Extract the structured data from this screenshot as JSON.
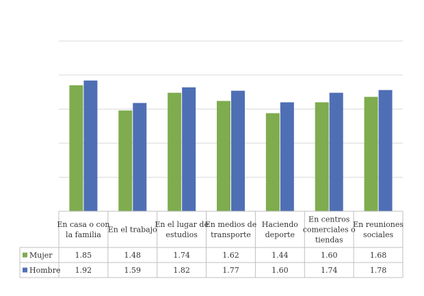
{
  "chart_data": {
    "type": "bar",
    "title": "",
    "xlabel": "",
    "ylabel": "",
    "ylim": [
      0,
      2.5
    ],
    "grid": true,
    "categories": [
      [
        "En casa o con",
        "la familia"
      ],
      [
        "En el trabajo"
      ],
      [
        "En el lugar de",
        "estudios"
      ],
      [
        "En medios de",
        "transporte"
      ],
      [
        "Haciendo",
        "deporte"
      ],
      [
        "En centros",
        "comerciales o",
        "tiendas"
      ],
      [
        "En reuniones",
        "sociales"
      ]
    ],
    "series": [
      {
        "name": "Mujer",
        "color": "#7fac4f",
        "values": [
          1.85,
          1.48,
          1.74,
          1.62,
          1.44,
          1.6,
          1.68
        ],
        "labels": [
          "1.85",
          "1.48",
          "1.74",
          "1.62",
          "1.44",
          "1.60",
          "1.68"
        ]
      },
      {
        "name": "Hombre",
        "color": "#4f6fb5",
        "values": [
          1.92,
          1.59,
          1.82,
          1.77,
          1.6,
          1.74,
          1.78
        ],
        "labels": [
          "1.92",
          "1.59",
          "1.82",
          "1.77",
          "1.60",
          "1.74",
          "1.78"
        ]
      }
    ]
  }
}
